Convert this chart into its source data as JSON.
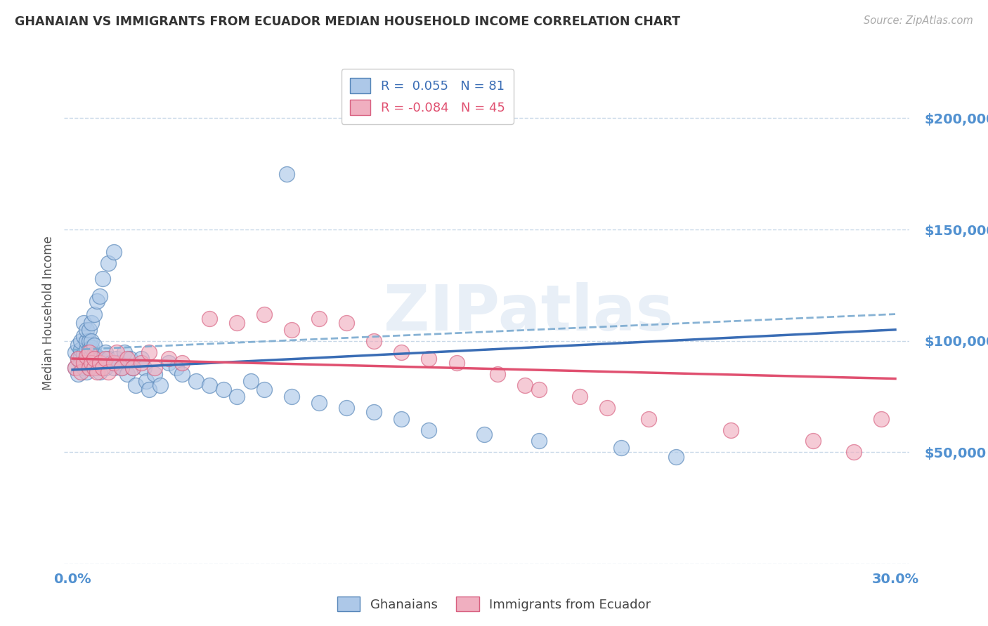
{
  "title": "GHANAIAN VS IMMIGRANTS FROM ECUADOR MEDIAN HOUSEHOLD INCOME CORRELATION CHART",
  "source": "Source: ZipAtlas.com",
  "ylabel": "Median Household Income",
  "xlim": [
    -0.003,
    0.305
  ],
  "ylim": [
    0,
    225000
  ],
  "ytick_vals": [
    0,
    50000,
    100000,
    150000,
    200000
  ],
  "ytick_labels": [
    "",
    "$50,000",
    "$100,000",
    "$150,000",
    "$200,000"
  ],
  "xtick_vals": [
    0.0,
    0.05,
    0.1,
    0.15,
    0.2,
    0.25,
    0.3
  ],
  "xtick_labels": [
    "0.0%",
    "",
    "",
    "",
    "",
    "",
    "30.0%"
  ],
  "blue_scatter_color": "#adc8e8",
  "blue_edge_color": "#5585b8",
  "pink_scatter_color": "#f0afc0",
  "pink_edge_color": "#d86080",
  "blue_line_color": "#3a6db5",
  "pink_line_color": "#e05070",
  "dashed_line_color": "#7aaad0",
  "axis_tick_color": "#5090d0",
  "legend_blue_R": " 0.055",
  "legend_blue_N": "81",
  "legend_pink_R": "-0.084",
  "legend_pink_N": "45",
  "watermark": "ZIPatlas",
  "blue_x": [
    0.001,
    0.001,
    0.002,
    0.002,
    0.002,
    0.003,
    0.003,
    0.003,
    0.003,
    0.004,
    0.004,
    0.004,
    0.004,
    0.005,
    0.005,
    0.005,
    0.005,
    0.005,
    0.006,
    0.006,
    0.006,
    0.006,
    0.006,
    0.007,
    0.007,
    0.007,
    0.007,
    0.007,
    0.008,
    0.008,
    0.008,
    0.008,
    0.009,
    0.009,
    0.009,
    0.01,
    0.01,
    0.01,
    0.011,
    0.011,
    0.012,
    0.012,
    0.013,
    0.013,
    0.014,
    0.015,
    0.015,
    0.016,
    0.017,
    0.018,
    0.019,
    0.02,
    0.021,
    0.022,
    0.023,
    0.025,
    0.026,
    0.027,
    0.028,
    0.03,
    0.032,
    0.035,
    0.038,
    0.04,
    0.045,
    0.05,
    0.055,
    0.06,
    0.065,
    0.07,
    0.08,
    0.09,
    0.1,
    0.11,
    0.12,
    0.13,
    0.15,
    0.17,
    0.2,
    0.22,
    0.078
  ],
  "blue_y": [
    88000,
    95000,
    92000,
    98000,
    85000,
    90000,
    93000,
    96000,
    100000,
    88000,
    102000,
    94000,
    108000,
    86000,
    92000,
    96000,
    100000,
    105000,
    88000,
    92000,
    96000,
    100000,
    105000,
    89000,
    93000,
    97000,
    100000,
    108000,
    90000,
    94000,
    98000,
    112000,
    88000,
    93000,
    118000,
    86000,
    92000,
    120000,
    90000,
    128000,
    88000,
    95000,
    92000,
    135000,
    90000,
    88000,
    140000,
    92000,
    90000,
    88000,
    95000,
    85000,
    92000,
    88000,
    80000,
    92000,
    88000,
    82000,
    78000,
    85000,
    80000,
    90000,
    88000,
    85000,
    82000,
    80000,
    78000,
    75000,
    82000,
    78000,
    75000,
    72000,
    70000,
    68000,
    65000,
    60000,
    58000,
    55000,
    52000,
    48000,
    175000
  ],
  "pink_x": [
    0.001,
    0.002,
    0.003,
    0.004,
    0.005,
    0.006,
    0.006,
    0.007,
    0.008,
    0.008,
    0.009,
    0.01,
    0.011,
    0.012,
    0.013,
    0.015,
    0.016,
    0.018,
    0.02,
    0.022,
    0.025,
    0.028,
    0.03,
    0.035,
    0.04,
    0.05,
    0.06,
    0.07,
    0.08,
    0.09,
    0.1,
    0.11,
    0.12,
    0.13,
    0.14,
    0.155,
    0.165,
    0.17,
    0.185,
    0.195,
    0.21,
    0.24,
    0.27,
    0.285,
    0.295
  ],
  "pink_y": [
    88000,
    92000,
    86000,
    90000,
    93000,
    88000,
    95000,
    90000,
    88000,
    92000,
    86000,
    90000,
    88000,
    92000,
    86000,
    90000,
    95000,
    88000,
    92000,
    88000,
    90000,
    95000,
    88000,
    92000,
    90000,
    110000,
    108000,
    112000,
    105000,
    110000,
    108000,
    100000,
    95000,
    92000,
    90000,
    85000,
    80000,
    78000,
    75000,
    70000,
    65000,
    60000,
    55000,
    50000,
    65000
  ],
  "blue_line_x0": 0.0,
  "blue_line_x1": 0.3,
  "blue_line_y0": 87000,
  "blue_line_y1": 105000,
  "pink_line_x0": 0.0,
  "pink_line_x1": 0.3,
  "pink_line_y0": 92000,
  "pink_line_y1": 83000,
  "dashed_line_x0": 0.0,
  "dashed_line_x1": 0.3,
  "dashed_line_y0": 96000,
  "dashed_line_y1": 112000
}
